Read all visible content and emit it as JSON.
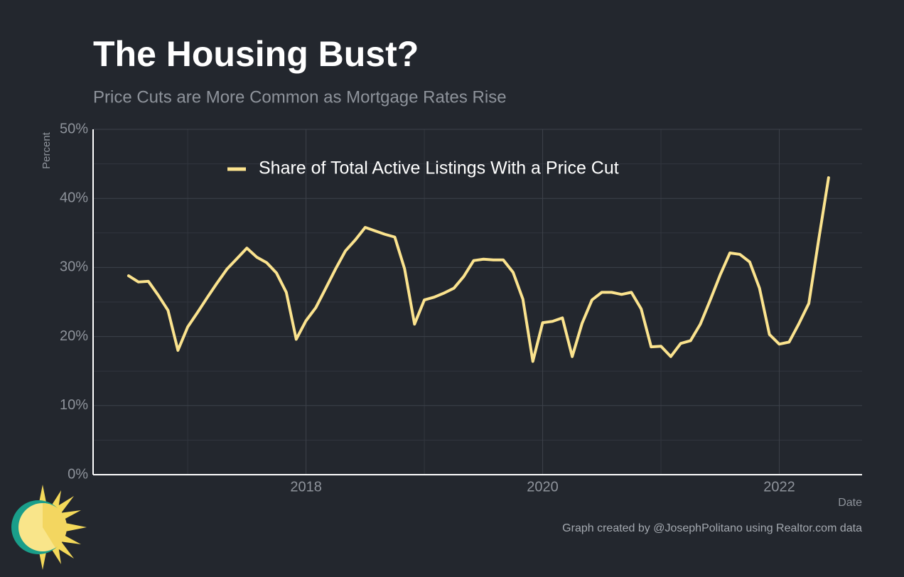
{
  "chart_data": {
    "type": "line",
    "title": "The Housing Bust?",
    "subtitle": "Price Cuts are More Common as Mortgage Rates Rise",
    "y_label": "Percent",
    "x_label": "Date",
    "caption": "Graph created by @JosephPolitano using Realtor.com data",
    "x": [
      2016.5,
      2016.583,
      2016.667,
      2016.75,
      2016.833,
      2016.917,
      2017,
      2017.083,
      2017.167,
      2017.25,
      2017.333,
      2017.417,
      2017.5,
      2017.583,
      2017.667,
      2017.75,
      2017.833,
      2017.917,
      2018,
      2018.083,
      2018.167,
      2018.25,
      2018.333,
      2018.417,
      2018.5,
      2018.583,
      2018.667,
      2018.75,
      2018.833,
      2018.917,
      2019,
      2019.083,
      2019.167,
      2019.25,
      2019.333,
      2019.417,
      2019.5,
      2019.583,
      2019.667,
      2019.75,
      2019.833,
      2019.917,
      2020,
      2020.083,
      2020.167,
      2020.25,
      2020.333,
      2020.417,
      2020.5,
      2020.583,
      2020.667,
      2020.75,
      2020.833,
      2020.917,
      2021,
      2021.083,
      2021.167,
      2021.25,
      2021.333,
      2021.417,
      2021.5,
      2021.583,
      2021.667,
      2021.75,
      2021.833,
      2021.917,
      2022,
      2022.083,
      2022.167,
      2022.25,
      2022.333,
      2022.417
    ],
    "series": [
      {
        "name": "Share of Total Active Listings With a Price Cut",
        "color": "#fbe38e",
        "values": [
          28.8,
          27.9,
          28.0,
          26.0,
          23.8,
          18.0,
          21.4,
          23.5,
          25.7,
          27.8,
          29.8,
          31.3,
          32.8,
          31.5,
          30.7,
          29.2,
          26.4,
          19.6,
          22.3,
          24.2,
          27.0,
          29.8,
          32.4,
          34.0,
          35.8,
          35.3,
          34.8,
          34.4,
          29.8,
          21.8,
          25.3,
          25.7,
          26.3,
          27.0,
          28.7,
          31.0,
          31.2,
          31.1,
          31.1,
          29.3,
          25.4,
          16.4,
          22.0,
          22.2,
          22.7,
          17.1,
          21.9,
          25.3,
          26.4,
          26.4,
          26.1,
          26.4,
          24.0,
          18.5,
          18.6,
          17.1,
          19.0,
          19.4,
          21.8,
          25.3,
          28.9,
          32.1,
          31.9,
          30.8,
          27.0,
          20.3,
          18.9,
          19.2,
          21.9,
          24.8,
          34.0,
          43.0
        ]
      }
    ],
    "xlim": [
      2016.2,
      2022.7
    ],
    "xticks": [
      2018,
      2020,
      2022
    ],
    "x_minor_ticks": [
      2017,
      2019,
      2021
    ],
    "ylim": [
      0,
      50
    ],
    "yticks": [
      {
        "value": 0,
        "label": "0%"
      },
      {
        "value": 10,
        "label": "10%"
      },
      {
        "value": 20,
        "label": "20%"
      },
      {
        "value": 30,
        "label": "30%"
      },
      {
        "value": 40,
        "label": "40%"
      },
      {
        "value": 50,
        "label": "50%"
      }
    ],
    "y_minor_ticks": [
      5,
      15,
      25,
      35,
      45
    ],
    "grid": true,
    "legend": "top"
  }
}
